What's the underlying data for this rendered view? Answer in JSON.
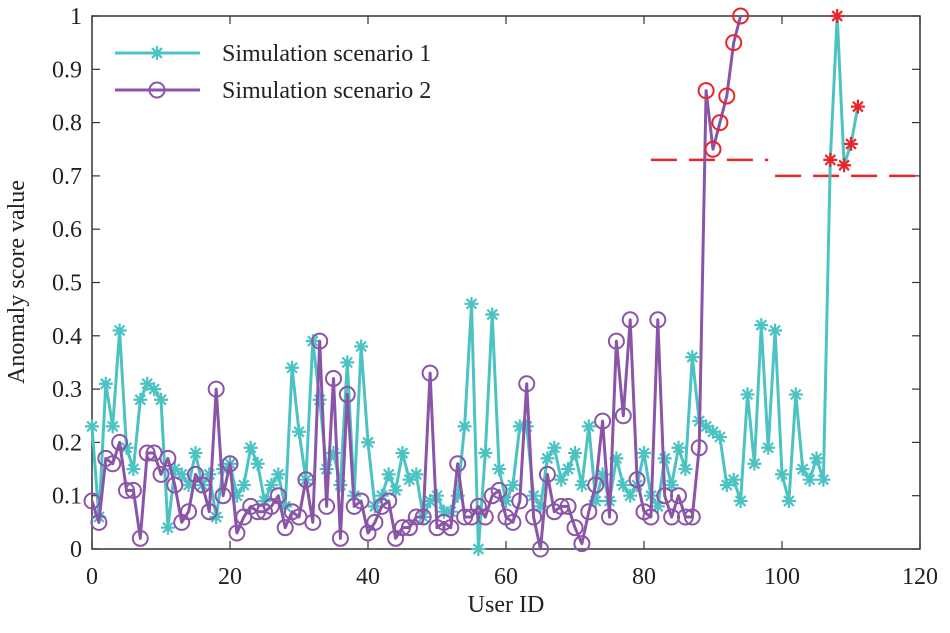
{
  "chart_data": {
    "type": "line",
    "xlabel": "User ID",
    "ylabel": "Anomaly score value",
    "xlim": [
      0,
      120
    ],
    "ylim": [
      0,
      1
    ],
    "xticks": [
      0,
      20,
      40,
      60,
      80,
      100,
      120
    ],
    "yticks": [
      0,
      0.1,
      0.2,
      0.3,
      0.4,
      0.5,
      0.6,
      0.7,
      0.8,
      0.9,
      1
    ],
    "grid": false,
    "legend": "upper left",
    "series": [
      {
        "name": "Simulation scenario 1",
        "color": "#4cc3c3",
        "marker": "asterisk",
        "x": [
          0,
          1,
          2,
          3,
          4,
          5,
          6,
          7,
          8,
          9,
          10,
          11,
          12,
          13,
          14,
          15,
          16,
          17,
          18,
          19,
          20,
          21,
          22,
          23,
          24,
          25,
          26,
          27,
          28,
          29,
          30,
          31,
          32,
          33,
          34,
          35,
          36,
          37,
          38,
          39,
          40,
          41,
          42,
          43,
          44,
          45,
          46,
          47,
          48,
          49,
          50,
          51,
          52,
          53,
          54,
          55,
          56,
          57,
          58,
          59,
          60,
          61,
          62,
          63,
          64,
          65,
          66,
          67,
          68,
          69,
          70,
          71,
          72,
          73,
          74,
          75,
          76,
          77,
          78,
          79,
          80,
          81,
          82,
          83,
          84,
          85,
          86,
          87,
          88,
          89,
          90,
          91,
          92,
          93,
          94,
          95,
          96,
          97,
          98,
          99,
          100,
          101,
          102,
          103,
          104,
          105,
          106,
          107,
          108,
          109,
          110,
          111
        ],
        "values": [
          0.23,
          0.06,
          0.31,
          0.23,
          0.41,
          0.19,
          0.15,
          0.28,
          0.31,
          0.3,
          0.28,
          0.04,
          0.15,
          0.14,
          0.12,
          0.18,
          0.12,
          0.14,
          0.06,
          0.15,
          0.16,
          0.1,
          0.12,
          0.19,
          0.16,
          0.09,
          0.12,
          0.14,
          0.08,
          0.34,
          0.22,
          0.13,
          0.39,
          0.28,
          0.15,
          0.18,
          0.12,
          0.35,
          0.1,
          0.38,
          0.2,
          0.08,
          0.1,
          0.14,
          0.11,
          0.18,
          0.13,
          0.14,
          0.06,
          0.09,
          0.1,
          0.07,
          0.07,
          0.1,
          0.23,
          0.46,
          0,
          0.18,
          0.44,
          0.15,
          0.09,
          0.12,
          0.23,
          0.23,
          0.1,
          0.08,
          0.17,
          0.19,
          0.13,
          0.15,
          0.18,
          0.12,
          0.23,
          0.09,
          0.14,
          0.09,
          0.17,
          0.12,
          0.1,
          0.12,
          0.18,
          0.1,
          0.08,
          0.17,
          0.12,
          0.19,
          0.15,
          0.36,
          0.24,
          0.23,
          0.22,
          0.21,
          0.12,
          0.13,
          0.09,
          0.29,
          0.16,
          0.42,
          0.19,
          0.41,
          0.14,
          0.09,
          0.29,
          0.15,
          0.13,
          0.17,
          0.13,
          0.73,
          1,
          0.72,
          0.76,
          0.83
        ]
      },
      {
        "name": "Simulation scenario 2",
        "color": "#8a55a8",
        "marker": "circle",
        "x": [
          0,
          1,
          2,
          3,
          4,
          5,
          6,
          7,
          8,
          9,
          10,
          11,
          12,
          13,
          14,
          15,
          16,
          17,
          18,
          19,
          20,
          21,
          22,
          23,
          24,
          25,
          26,
          27,
          28,
          29,
          30,
          31,
          32,
          33,
          34,
          35,
          36,
          37,
          38,
          39,
          40,
          41,
          42,
          43,
          44,
          45,
          46,
          47,
          48,
          49,
          50,
          51,
          52,
          53,
          54,
          55,
          56,
          57,
          58,
          59,
          60,
          61,
          62,
          63,
          64,
          65,
          66,
          67,
          68,
          69,
          70,
          71,
          72,
          73,
          74,
          75,
          76,
          77,
          78,
          79,
          80,
          81,
          82,
          83,
          84,
          85,
          86,
          87,
          88,
          89,
          90,
          91,
          92,
          93,
          94
        ],
        "values": [
          0.09,
          0.05,
          0.17,
          0.16,
          0.2,
          0.11,
          0.11,
          0.02,
          0.18,
          0.18,
          0.14,
          0.17,
          0.12,
          0.05,
          0.07,
          0.14,
          0.12,
          0.07,
          0.3,
          0.1,
          0.16,
          0.03,
          0.06,
          0.08,
          0.07,
          0.07,
          0.08,
          0.1,
          0.04,
          0.07,
          0.06,
          0.13,
          0.05,
          0.39,
          0.08,
          0.32,
          0.02,
          0.29,
          0.08,
          0.09,
          0.03,
          0.05,
          0.08,
          0.09,
          0.02,
          0.04,
          0.04,
          0.06,
          0.06,
          0.33,
          0.04,
          0.05,
          0.04,
          0.16,
          0.06,
          0.06,
          0.08,
          0.06,
          0.1,
          0.11,
          0.06,
          0.05,
          0.09,
          0.31,
          0.06,
          0,
          0.14,
          0.07,
          0.08,
          0.08,
          0.04,
          0.01,
          0.07,
          0.12,
          0.24,
          0.06,
          0.39,
          0.25,
          0.43,
          0.13,
          0.07,
          0.06,
          0.43,
          0.1,
          0.06,
          0.1,
          0.06,
          0.06,
          0.19,
          0.86,
          0.75,
          0.8,
          0.85,
          0.95,
          1
        ]
      }
    ],
    "thresholds": [
      {
        "x": [
          81,
          98
        ],
        "y": 0.73
      },
      {
        "x": [
          99,
          120
        ],
        "y": 0.7
      }
    ],
    "threshold_color": "#e8262a"
  }
}
